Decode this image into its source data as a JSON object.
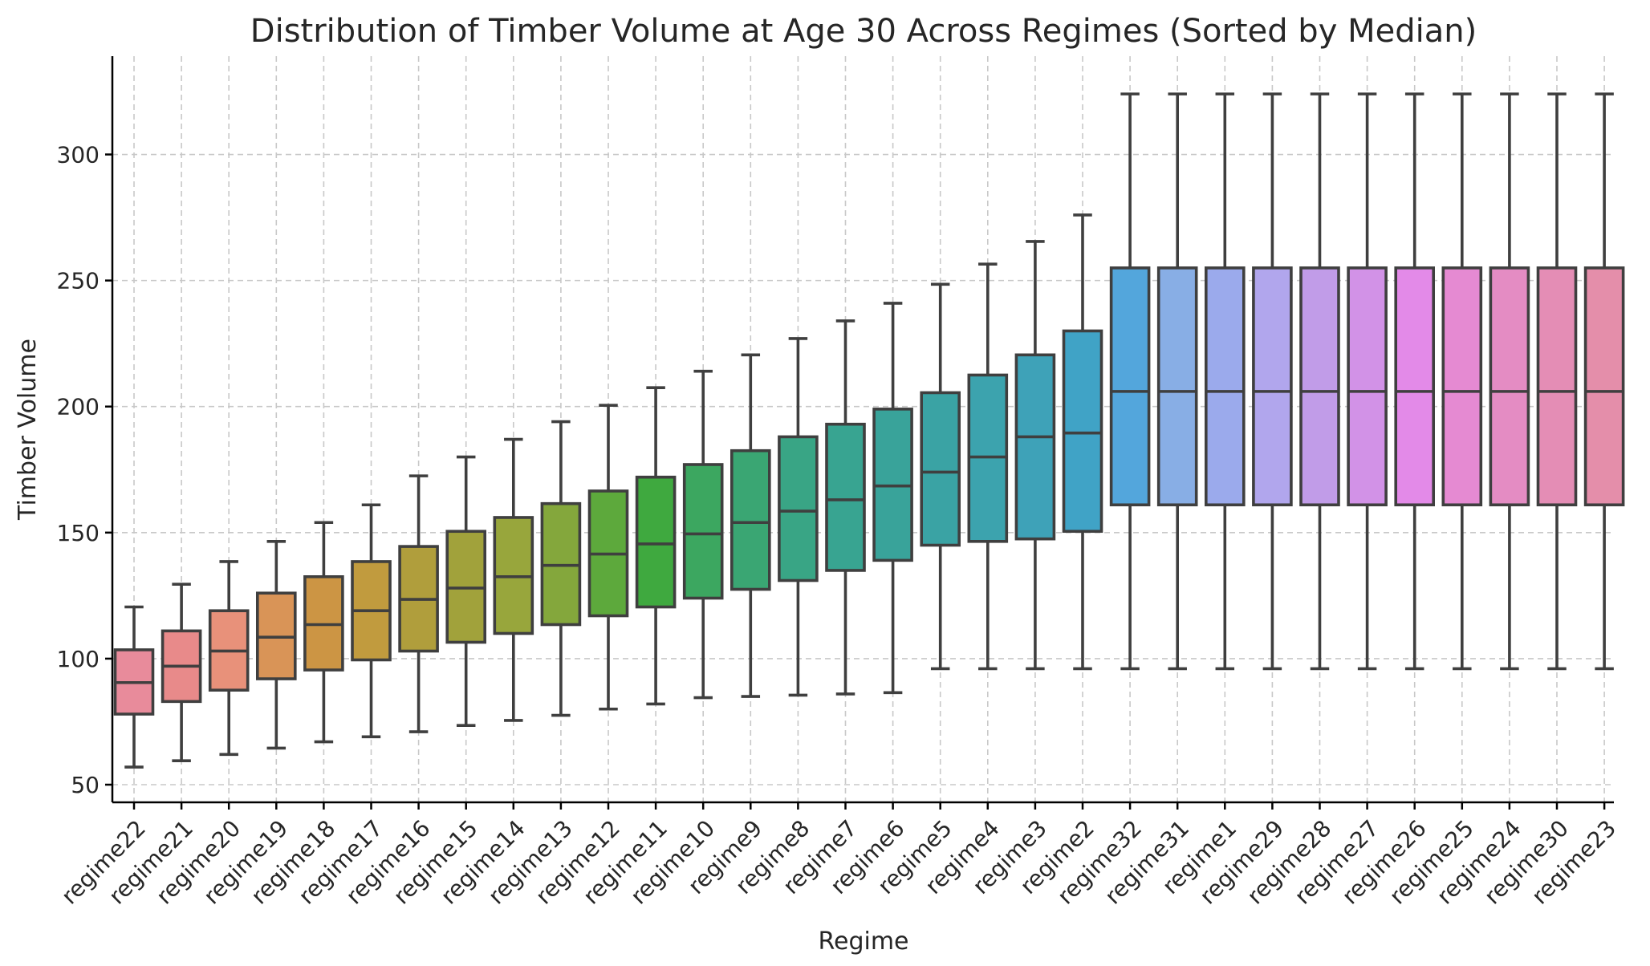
{
  "chart_data": {
    "type": "box",
    "title": "Distribution of Timber Volume at Age 30 Across Regimes (Sorted by Median)",
    "xlabel": "Regime",
    "ylabel": "Timber Volume",
    "ylim": [
      43,
      339
    ],
    "yticks": [
      50,
      100,
      150,
      200,
      250,
      300
    ],
    "grid": true,
    "categories": [
      "regime22",
      "regime21",
      "regime20",
      "regime19",
      "regime18",
      "regime17",
      "regime16",
      "regime15",
      "regime14",
      "regime13",
      "regime12",
      "regime11",
      "regime10",
      "regime9",
      "regime8",
      "regime7",
      "regime6",
      "regime5",
      "regime4",
      "regime3",
      "regime2",
      "regime32",
      "regime31",
      "regime1",
      "regime29",
      "regime28",
      "regime27",
      "regime26",
      "regime25",
      "regime24",
      "regime30",
      "regime23"
    ],
    "colors": [
      "#e88b9b",
      "#e88a8a",
      "#e8917a",
      "#d99457",
      "#cc9544",
      "#c19b3e",
      "#b09e3c",
      "#a1a23b",
      "#98a63c",
      "#84a73c",
      "#5da93c",
      "#3fa93f",
      "#3ca760",
      "#3aa673",
      "#39a585",
      "#38a491",
      "#39a39a",
      "#3aa3a4",
      "#3ca3ae",
      "#3ea2b8",
      "#40a3c6",
      "#53a6dc",
      "#88aee5",
      "#9baaec",
      "#b1a6ed",
      "#c19ce8",
      "#d292e7",
      "#e38ae8",
      "#e58ad2",
      "#e48cc3",
      "#e48db5",
      "#e48eaa"
    ],
    "series": [
      {
        "boxes": [
          {
            "whislo": 57,
            "q1": 78,
            "med": 90.5,
            "q3": 103.5,
            "whishi": 120.5
          },
          {
            "whislo": 59.5,
            "q1": 83,
            "med": 97,
            "q3": 111,
            "whishi": 129.5
          },
          {
            "whislo": 62,
            "q1": 87.5,
            "med": 103,
            "q3": 119,
            "whishi": 138.5
          },
          {
            "whislo": 64.5,
            "q1": 92,
            "med": 108.5,
            "q3": 126,
            "whishi": 146.5
          },
          {
            "whislo": 67,
            "q1": 95.5,
            "med": 113.5,
            "q3": 132.5,
            "whishi": 154
          },
          {
            "whislo": 69,
            "q1": 99.5,
            "med": 119,
            "q3": 138.5,
            "whishi": 161
          },
          {
            "whislo": 71,
            "q1": 103,
            "med": 123.5,
            "q3": 144.5,
            "whishi": 172.5
          },
          {
            "whislo": 73.5,
            "q1": 106.5,
            "med": 128,
            "q3": 150.5,
            "whishi": 180
          },
          {
            "whislo": 75.5,
            "q1": 110,
            "med": 132.5,
            "q3": 156,
            "whishi": 187
          },
          {
            "whislo": 77.5,
            "q1": 113.5,
            "med": 137,
            "q3": 161.5,
            "whishi": 194
          },
          {
            "whislo": 80,
            "q1": 117,
            "med": 141.5,
            "q3": 166.5,
            "whishi": 200.5
          },
          {
            "whislo": 82,
            "q1": 120.5,
            "med": 145.5,
            "q3": 172,
            "whishi": 207.5
          },
          {
            "whislo": 84.5,
            "q1": 124,
            "med": 149.5,
            "q3": 177,
            "whishi": 214
          },
          {
            "whislo": 85,
            "q1": 127.5,
            "med": 154,
            "q3": 182.5,
            "whishi": 220.5
          },
          {
            "whislo": 85.5,
            "q1": 131,
            "med": 158.5,
            "q3": 188,
            "whishi": 227
          },
          {
            "whislo": 86,
            "q1": 135,
            "med": 163,
            "q3": 193,
            "whishi": 234
          },
          {
            "whislo": 86.5,
            "q1": 139,
            "med": 168.5,
            "q3": 199,
            "whishi": 241
          },
          {
            "whislo": 96,
            "q1": 145,
            "med": 174,
            "q3": 205.5,
            "whishi": 248.5
          },
          {
            "whislo": 96,
            "q1": 146.5,
            "med": 180,
            "q3": 212.5,
            "whishi": 256.5
          },
          {
            "whislo": 96,
            "q1": 147.5,
            "med": 188,
            "q3": 220.5,
            "whishi": 265.5
          },
          {
            "whislo": 96,
            "q1": 150.5,
            "med": 189.5,
            "q3": 230,
            "whishi": 276
          },
          {
            "whislo": 96,
            "q1": 161,
            "med": 206,
            "q3": 255,
            "whishi": 324
          },
          {
            "whislo": 96,
            "q1": 161,
            "med": 206,
            "q3": 255,
            "whishi": 324
          },
          {
            "whislo": 96,
            "q1": 161,
            "med": 206,
            "q3": 255,
            "whishi": 324
          },
          {
            "whislo": 96,
            "q1": 161,
            "med": 206,
            "q3": 255,
            "whishi": 324
          },
          {
            "whislo": 96,
            "q1": 161,
            "med": 206,
            "q3": 255,
            "whishi": 324
          },
          {
            "whislo": 96,
            "q1": 161,
            "med": 206,
            "q3": 255,
            "whishi": 324
          },
          {
            "whislo": 96,
            "q1": 161,
            "med": 206,
            "q3": 255,
            "whishi": 324
          },
          {
            "whislo": 96,
            "q1": 161,
            "med": 206,
            "q3": 255,
            "whishi": 324
          },
          {
            "whislo": 96,
            "q1": 161,
            "med": 206,
            "q3": 255,
            "whishi": 324
          },
          {
            "whislo": 96,
            "q1": 161,
            "med": 206,
            "q3": 255,
            "whishi": 324
          },
          {
            "whislo": 96,
            "q1": 161,
            "med": 206,
            "q3": 255,
            "whishi": 324
          }
        ]
      }
    ]
  }
}
